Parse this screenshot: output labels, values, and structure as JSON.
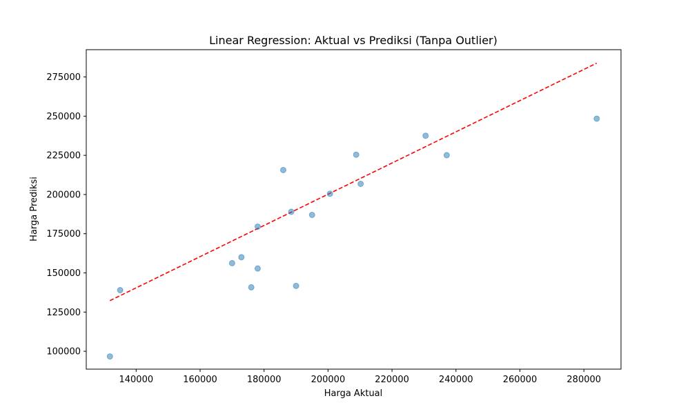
{
  "chart_data": {
    "type": "scatter",
    "title": "Linear Regression: Aktual vs Prediksi (Tanpa Outlier)",
    "xlabel": "Harga Aktual",
    "ylabel": "Harga Prediksi",
    "xlim": [
      124400,
      291600
    ],
    "ylim": [
      88600,
      292400
    ],
    "xticks": [
      140000,
      160000,
      180000,
      200000,
      220000,
      240000,
      260000,
      280000
    ],
    "yticks": [
      100000,
      125000,
      150000,
      175000,
      200000,
      225000,
      250000,
      275000
    ],
    "grid": false,
    "colors": {
      "points": "#1f77b4",
      "fit_line": "#ff0000"
    },
    "series": [
      {
        "type": "scatter",
        "points": [
          {
            "x": 131800,
            "y": 96700
          },
          {
            "x": 135000,
            "y": 139000
          },
          {
            "x": 170000,
            "y": 156200
          },
          {
            "x": 172900,
            "y": 160000
          },
          {
            "x": 176000,
            "y": 140800
          },
          {
            "x": 178000,
            "y": 179500
          },
          {
            "x": 178000,
            "y": 152800
          },
          {
            "x": 186000,
            "y": 215600
          },
          {
            "x": 188500,
            "y": 189000
          },
          {
            "x": 190000,
            "y": 141700
          },
          {
            "x": 195000,
            "y": 187000
          },
          {
            "x": 200600,
            "y": 200500
          },
          {
            "x": 208800,
            "y": 225400
          },
          {
            "x": 210200,
            "y": 206800
          },
          {
            "x": 230500,
            "y": 237500
          },
          {
            "x": 237100,
            "y": 225100
          },
          {
            "x": 284000,
            "y": 248400
          }
        ]
      },
      {
        "type": "line",
        "style": "dashed",
        "points": [
          {
            "x": 131800,
            "y": 132300
          },
          {
            "x": 284000,
            "y": 283800
          }
        ]
      }
    ]
  }
}
